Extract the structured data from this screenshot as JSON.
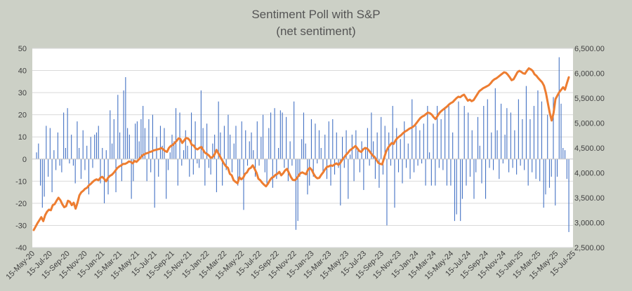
{
  "chart_data": {
    "type": "bar+line",
    "title": "Sentiment Poll with S&P",
    "subtitle": "(net sentiment)",
    "y_left": {
      "min": -40,
      "max": 50,
      "step": 10,
      "ticks": [
        "50",
        "40",
        "30",
        "20",
        "10",
        "0",
        "-10",
        "-20",
        "-30",
        "-40"
      ]
    },
    "y_right": {
      "min": 2500,
      "max": 6500,
      "step": 500,
      "ticks": [
        "6,500.00",
        "6,000.00",
        "5,500.00",
        "5,000.00",
        "4,500.00",
        "4,000.00",
        "3,500.00",
        "3,000.00",
        "2,500.00"
      ]
    },
    "x_ticks": [
      "15-May-20",
      "15-Jul-20",
      "15-Sep-20",
      "15-Nov-20",
      "15-Jan-21",
      "15-Mar-21",
      "15-May-21",
      "15-Jul-21",
      "15-Sep-21",
      "15-Nov-21",
      "15-Jan-22",
      "15-Mar-22",
      "15-May-22",
      "15-Jul-22",
      "15-Sep-22",
      "15-Nov-22",
      "15-Jan-23",
      "15-Mar-23",
      "15-May-23",
      "15-Jul-23",
      "15-Sep-23",
      "15-Nov-23",
      "15-Jan-24",
      "15-Mar-24",
      "15-May-24",
      "15-Jul-24",
      "15-Sep-24",
      "15-Nov-24",
      "15-Jan-25",
      "15-Mar-25",
      "15-May-25",
      "15-Jul-25"
    ],
    "grid": true,
    "series": [
      {
        "kind": "bar",
        "axis": "left",
        "color": "#4472c4",
        "values": [
          3,
          7,
          -12,
          -22,
          -17,
          15,
          -8,
          14,
          -15,
          4,
          -5,
          12,
          -3,
          -6,
          21,
          5,
          23,
          -2,
          11,
          -3,
          -11,
          17,
          5,
          -9,
          13,
          -5,
          6,
          -16,
          10,
          -4,
          11,
          12,
          15,
          -11,
          5,
          -20,
          4,
          -16,
          22,
          7,
          18,
          -15,
          29,
          12,
          -10,
          31,
          37,
          14,
          11,
          -18,
          -10,
          16,
          17,
          8,
          18,
          24,
          14,
          -10,
          18,
          -6,
          20,
          -22,
          10,
          -8,
          15,
          6,
          14,
          -18,
          -5,
          3,
          11,
          8,
          23,
          -12,
          21,
          -3,
          4,
          13,
          6,
          -8,
          21,
          -7,
          17,
          -2,
          -4,
          31,
          14,
          -12,
          16,
          -4,
          -7,
          7,
          11,
          -15,
          26,
          12,
          -12,
          15,
          -5,
          20,
          11,
          -6,
          7,
          15,
          -12,
          -8,
          17,
          -23,
          13,
          -3,
          8,
          12,
          4,
          -8,
          17,
          -3,
          10,
          20,
          -6,
          -11,
          14,
          21,
          -13,
          23,
          -9,
          5,
          22,
          21,
          -4,
          19,
          -10,
          8,
          -3,
          26,
          -32,
          -28,
          -8,
          9,
          21,
          7,
          -16,
          -12,
          18,
          -8,
          16,
          -2,
          13,
          5,
          -6,
          11,
          -9,
          17,
          -12,
          18,
          -7,
          12,
          -4,
          -21,
          10,
          -4,
          13,
          -18,
          2,
          11,
          -10,
          13,
          4,
          -6,
          8,
          -14,
          5,
          14,
          -3,
          21,
          8,
          -9,
          12,
          -13,
          19,
          -7,
          15,
          -30,
          12,
          -3,
          24,
          -22,
          14,
          -6,
          9,
          -11,
          17,
          -4,
          7,
          -9,
          27,
          -6,
          15,
          -3,
          13,
          -2,
          16,
          -12,
          24,
          3,
          -12,
          16,
          -12,
          24,
          -4,
          18,
          -5,
          23,
          -12,
          24,
          -12,
          12,
          -28,
          -25,
          26,
          -28,
          -18,
          24,
          -12,
          21,
          -8,
          13,
          -18,
          -6,
          19,
          6,
          -11,
          24,
          -18,
          27,
          -4,
          12,
          -5,
          32,
          13,
          -9,
          25,
          -2,
          11,
          23,
          -6,
          21,
          -4,
          13,
          -7,
          27,
          -3,
          18,
          -5,
          33,
          -12,
          18,
          -6,
          24,
          -9,
          31,
          -10,
          26,
          -22,
          -16,
          20,
          -13,
          -8,
          28,
          -21,
          -8,
          46,
          25,
          5,
          4,
          -9,
          -33
        ]
      },
      {
        "kind": "line",
        "axis": "right",
        "color": "#ed7d31",
        "values": [
          2850,
          2920,
          2990,
          3050,
          3110,
          3030,
          3150,
          3220,
          3260,
          3250,
          3350,
          3370,
          3440,
          3500,
          3450,
          3370,
          3310,
          3330,
          3440,
          3420,
          3350,
          3400,
          3280,
          3400,
          3550,
          3610,
          3640,
          3680,
          3700,
          3750,
          3780,
          3820,
          3850,
          3870,
          3850,
          3900,
          3920,
          3880,
          3830,
          3900,
          3940,
          3960,
          4000,
          4050,
          4100,
          4130,
          4150,
          4180,
          4180,
          4200,
          4230,
          4220,
          4190,
          4240,
          4220,
          4260,
          4300,
          4350,
          4370,
          4390,
          4400,
          4420,
          4430,
          4450,
          4460,
          4470,
          4480,
          4500,
          4470,
          4440,
          4420,
          4500,
          4540,
          4560,
          4600,
          4640,
          4690,
          4680,
          4600,
          4650,
          4700,
          4690,
          4650,
          4560,
          4550,
          4490,
          4470,
          4500,
          4520,
          4460,
          4400,
          4380,
          4350,
          4300,
          4320,
          4370,
          4460,
          4390,
          4320,
          4250,
          4180,
          4130,
          4100,
          3980,
          3950,
          3850,
          3820,
          3790,
          3910,
          3870,
          3900,
          3980,
          4010,
          4080,
          4100,
          4150,
          4080,
          4000,
          3880,
          3850,
          3800,
          3760,
          3730,
          3780,
          3850,
          3900,
          3920,
          3960,
          3980,
          4020,
          3950,
          3990,
          4050,
          4080,
          4000,
          3920,
          3860,
          3850,
          3880,
          3940,
          3990,
          4010,
          3990,
          3970,
          4060,
          4100,
          4060,
          3980,
          3920,
          3890,
          3900,
          3960,
          4010,
          4070,
          4120,
          4130,
          4150,
          4140,
          4170,
          4190,
          4160,
          4200,
          4260,
          4310,
          4360,
          4400,
          4450,
          4480,
          4510,
          4540,
          4490,
          4440,
          4420,
          4470,
          4500,
          4490,
          4450,
          4400,
          4350,
          4320,
          4260,
          4200,
          4180,
          4170,
          4300,
          4420,
          4500,
          4550,
          4600,
          4580,
          4650,
          4700,
          4730,
          4760,
          4800,
          4830,
          4850,
          4880,
          4900,
          4920,
          4950,
          5000,
          5050,
          5100,
          5130,
          5150,
          5180,
          5210,
          5200,
          5170,
          5120,
          5080,
          5140,
          5200,
          5240,
          5270,
          5300,
          5330,
          5370,
          5400,
          5420,
          5460,
          5500,
          5530,
          5520,
          5550,
          5570,
          5510,
          5450,
          5470,
          5440,
          5460,
          5520,
          5580,
          5640,
          5670,
          5700,
          5720,
          5740,
          5760,
          5800,
          5850,
          5880,
          5900,
          5930,
          5960,
          5990,
          6020,
          6010,
          5970,
          5920,
          5860,
          5880,
          5950,
          6020,
          6050,
          6030,
          6000,
          5990,
          6050,
          6100,
          6080,
          6050,
          5980,
          5950,
          5900,
          5860,
          5820,
          5750,
          5600,
          5400,
          5200,
          5050,
          5200,
          5480,
          5550,
          5620,
          5670,
          5720,
          5670,
          5800,
          5920
        ]
      }
    ]
  }
}
